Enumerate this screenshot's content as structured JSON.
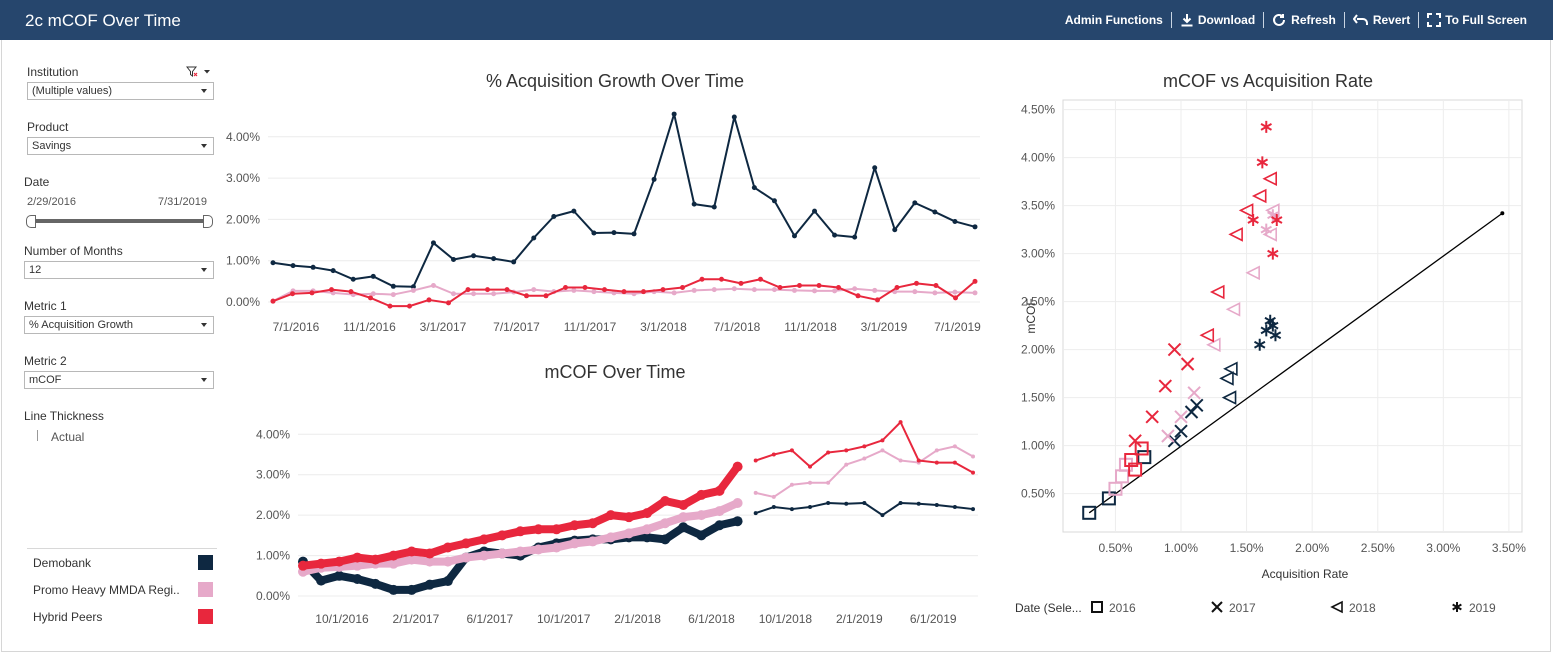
{
  "app": {
    "title": "2c mCOF Over Time",
    "toolbar": {
      "admin": "Admin Functions",
      "download": "Download",
      "refresh": "Refresh",
      "revert": "Revert",
      "fullscreen": "To Full Screen"
    }
  },
  "filters": {
    "institution": {
      "label": "Institution",
      "value": "(Multiple values)"
    },
    "product": {
      "label": "Product",
      "value": "Savings"
    },
    "date": {
      "label": "Date",
      "start": "2/29/2016",
      "end": "7/31/2019"
    },
    "months": {
      "label": "Number of Months",
      "value": "12"
    },
    "metric1": {
      "label": "Metric 1",
      "value": "% Acquisition Growth"
    },
    "metric2": {
      "label": "Metric 2",
      "value": "mCOF"
    },
    "thickness": {
      "label": "Line Thickness",
      "value": "Actual"
    }
  },
  "legend": [
    {
      "name": "Demobank",
      "color": "#0e2841"
    },
    {
      "name": "Promo Heavy MMDA Regi..",
      "color": "#e6a9c9"
    },
    {
      "name": "Hybrid Peers",
      "color": "#e8273d"
    }
  ],
  "shape_legend": {
    "title": "Date (Sele...",
    "items": [
      {
        "label": "2016",
        "shape": "square"
      },
      {
        "label": "2017",
        "shape": "x"
      },
      {
        "label": "2018",
        "shape": "triangle-left"
      },
      {
        "label": "2019",
        "shape": "asterisk"
      }
    ]
  },
  "chart_data": [
    {
      "type": "line",
      "title": "% Acquisition Growth Over Time",
      "x_ticks": [
        "7/1/2016",
        "11/1/2016",
        "3/1/2017",
        "7/1/2017",
        "11/1/2017",
        "3/1/2018",
        "7/1/2018",
        "11/1/2018",
        "3/1/2019",
        "7/1/2019"
      ],
      "y_ticks": [
        "0.00%",
        "1.00%",
        "2.00%",
        "3.00%",
        "4.00%"
      ],
      "ylim": [
        0,
        4.6
      ],
      "series": [
        {
          "name": "Demobank",
          "color": "#0e2841",
          "values": [
            0.95,
            0.88,
            0.84,
            0.76,
            0.55,
            0.62,
            0.38,
            0.37,
            1.43,
            1.03,
            1.12,
            1.05,
            0.97,
            1.55,
            2.07,
            2.2,
            1.67,
            1.68,
            1.65,
            2.97,
            4.55,
            2.37,
            2.3,
            4.48,
            2.77,
            2.45,
            1.6,
            2.2,
            1.62,
            1.57,
            3.25,
            1.75,
            2.4,
            2.18,
            1.95,
            1.82
          ]
        },
        {
          "name": "Promo Heavy MMDA Regi..",
          "color": "#e6a9c9",
          "values": [
            0.02,
            0.27,
            0.27,
            0.22,
            0.18,
            0.2,
            0.18,
            0.28,
            0.4,
            0.2,
            0.2,
            0.2,
            0.24,
            0.3,
            0.25,
            0.28,
            0.25,
            0.22,
            0.2,
            0.25,
            0.22,
            0.28,
            0.3,
            0.32,
            0.3,
            0.3,
            0.28,
            0.27,
            0.27,
            0.32,
            0.28,
            0.25,
            0.25,
            0.22,
            0.24,
            0.22
          ]
        },
        {
          "name": "Hybrid Peers",
          "color": "#e8273d",
          "values": [
            0.02,
            0.2,
            0.22,
            0.3,
            0.25,
            0.1,
            -0.1,
            -0.1,
            0.05,
            -0.02,
            0.3,
            0.3,
            0.3,
            0.15,
            0.15,
            0.35,
            0.35,
            0.3,
            0.25,
            0.25,
            0.3,
            0.35,
            0.55,
            0.55,
            0.45,
            0.55,
            0.35,
            0.4,
            0.4,
            0.35,
            0.15,
            0.05,
            0.35,
            0.45,
            0.4,
            0.1,
            0.5
          ]
        }
      ]
    },
    {
      "type": "line",
      "title": "mCOF Over Time",
      "x_ticks": [
        "10/1/2016",
        "2/1/2017",
        "6/1/2017",
        "10/1/2017",
        "2/1/2018",
        "6/1/2018",
        "10/1/2018",
        "2/1/2019",
        "6/1/2019"
      ],
      "y_ticks": [
        "0.00%",
        "1.00%",
        "2.00%",
        "3.00%",
        "4.00%"
      ],
      "ylim": [
        0,
        4.6
      ],
      "series": [
        {
          "name": "Demobank",
          "color": "#0e2841",
          "values": [
            0.85,
            0.38,
            0.5,
            0.42,
            0.3,
            0.15,
            0.15,
            0.28,
            0.37,
            0.95,
            1.1,
            1.05,
            1.0,
            1.2,
            1.3,
            1.37,
            1.4,
            1.4,
            1.45,
            1.45,
            1.4,
            1.7,
            1.5,
            1.75,
            1.85,
            2.05,
            2.2,
            2.15,
            2.2,
            2.3,
            2.28,
            2.3,
            2.0,
            2.3,
            2.28,
            2.25,
            2.2,
            2.15
          ]
        },
        {
          "name": "Promo Heavy MMDA Regi..",
          "color": "#e6a9c9",
          "values": [
            0.6,
            0.7,
            0.72,
            0.75,
            0.8,
            0.8,
            0.9,
            0.85,
            0.85,
            0.95,
            1.0,
            1.05,
            1.1,
            1.15,
            1.2,
            1.3,
            1.35,
            1.45,
            1.55,
            1.65,
            1.8,
            1.95,
            2.0,
            2.1,
            2.3,
            2.55,
            2.45,
            2.75,
            2.8,
            2.8,
            3.25,
            3.4,
            3.6,
            3.35,
            3.3,
            3.6,
            3.7,
            3.45
          ]
        },
        {
          "name": "Hybrid Peers",
          "color": "#e8273d",
          "values": [
            0.75,
            0.8,
            0.85,
            0.95,
            0.9,
            1.0,
            1.1,
            1.05,
            1.2,
            1.3,
            1.4,
            1.5,
            1.6,
            1.65,
            1.65,
            1.75,
            1.8,
            2.0,
            1.95,
            2.05,
            2.35,
            2.25,
            2.5,
            2.6,
            3.2,
            3.35,
            3.5,
            3.6,
            3.2,
            3.55,
            3.6,
            3.7,
            3.85,
            4.3,
            3.35,
            3.3,
            3.3,
            3.05
          ]
        }
      ]
    },
    {
      "type": "scatter",
      "title": "mCOF vs Acquisition Rate",
      "xlabel": "Acquisition Rate",
      "ylabel": "mCOF",
      "x_ticks": [
        "0.50%",
        "1.00%",
        "1.50%",
        "2.00%",
        "2.50%",
        "3.00%",
        "3.50%"
      ],
      "y_ticks": [
        "0.50%",
        "1.00%",
        "1.50%",
        "2.00%",
        "2.50%",
        "3.00%",
        "3.50%",
        "4.00%",
        "4.50%"
      ],
      "xlim": [
        0.1,
        3.6
      ],
      "ylim": [
        0.1,
        4.6
      ],
      "reference_line": [
        [
          0.3,
          0.3
        ],
        [
          3.45,
          3.42
        ]
      ],
      "points": [
        {
          "x": 0.3,
          "y": 0.3,
          "s": "square",
          "c": "#0e2841"
        },
        {
          "x": 0.45,
          "y": 0.45,
          "s": "square",
          "c": "#0e2841"
        },
        {
          "x": 0.72,
          "y": 0.88,
          "s": "square",
          "c": "#0e2841"
        },
        {
          "x": 0.5,
          "y": 0.55,
          "s": "square",
          "c": "#e6a9c9"
        },
        {
          "x": 0.58,
          "y": 0.8,
          "s": "square",
          "c": "#e6a9c9"
        },
        {
          "x": 0.55,
          "y": 0.68,
          "s": "square",
          "c": "#e6a9c9"
        },
        {
          "x": 0.65,
          "y": 0.75,
          "s": "square",
          "c": "#e8273d"
        },
        {
          "x": 0.7,
          "y": 0.97,
          "s": "square",
          "c": "#e8273d"
        },
        {
          "x": 0.62,
          "y": 0.85,
          "s": "square",
          "c": "#e8273d"
        },
        {
          "x": 0.95,
          "y": 1.05,
          "s": "x",
          "c": "#0e2841"
        },
        {
          "x": 1.0,
          "y": 1.15,
          "s": "x",
          "c": "#0e2841"
        },
        {
          "x": 1.08,
          "y": 1.35,
          "s": "x",
          "c": "#0e2841"
        },
        {
          "x": 1.12,
          "y": 1.42,
          "s": "x",
          "c": "#0e2841"
        },
        {
          "x": 0.9,
          "y": 1.1,
          "s": "x",
          "c": "#e6a9c9"
        },
        {
          "x": 1.0,
          "y": 1.3,
          "s": "x",
          "c": "#e6a9c9"
        },
        {
          "x": 1.1,
          "y": 1.55,
          "s": "x",
          "c": "#e6a9c9"
        },
        {
          "x": 0.65,
          "y": 1.05,
          "s": "x",
          "c": "#e8273d"
        },
        {
          "x": 0.78,
          "y": 1.3,
          "s": "x",
          "c": "#e8273d"
        },
        {
          "x": 0.88,
          "y": 1.62,
          "s": "x",
          "c": "#e8273d"
        },
        {
          "x": 0.95,
          "y": 2.0,
          "s": "x",
          "c": "#e8273d"
        },
        {
          "x": 1.05,
          "y": 1.85,
          "s": "x",
          "c": "#e8273d"
        },
        {
          "x": 1.37,
          "y": 1.5,
          "s": "triangle-left",
          "c": "#0e2841"
        },
        {
          "x": 1.35,
          "y": 1.7,
          "s": "triangle-left",
          "c": "#0e2841"
        },
        {
          "x": 1.38,
          "y": 1.8,
          "s": "triangle-left",
          "c": "#0e2841"
        },
        {
          "x": 1.25,
          "y": 2.05,
          "s": "triangle-left",
          "c": "#e6a9c9"
        },
        {
          "x": 1.4,
          "y": 2.42,
          "s": "triangle-left",
          "c": "#e6a9c9"
        },
        {
          "x": 1.55,
          "y": 2.8,
          "s": "triangle-left",
          "c": "#e6a9c9"
        },
        {
          "x": 1.68,
          "y": 3.2,
          "s": "triangle-left",
          "c": "#e6a9c9"
        },
        {
          "x": 1.7,
          "y": 3.45,
          "s": "triangle-left",
          "c": "#e6a9c9"
        },
        {
          "x": 1.2,
          "y": 2.15,
          "s": "triangle-left",
          "c": "#e8273d"
        },
        {
          "x": 1.28,
          "y": 2.6,
          "s": "triangle-left",
          "c": "#e8273d"
        },
        {
          "x": 1.42,
          "y": 3.2,
          "s": "triangle-left",
          "c": "#e8273d"
        },
        {
          "x": 1.5,
          "y": 3.45,
          "s": "triangle-left",
          "c": "#e8273d"
        },
        {
          "x": 1.6,
          "y": 3.6,
          "s": "triangle-left",
          "c": "#e8273d"
        },
        {
          "x": 1.68,
          "y": 3.78,
          "s": "triangle-left",
          "c": "#e8273d"
        },
        {
          "x": 1.6,
          "y": 2.05,
          "s": "asterisk",
          "c": "#0e2841"
        },
        {
          "x": 1.65,
          "y": 2.2,
          "s": "asterisk",
          "c": "#0e2841"
        },
        {
          "x": 1.7,
          "y": 2.25,
          "s": "asterisk",
          "c": "#0e2841"
        },
        {
          "x": 1.72,
          "y": 2.15,
          "s": "asterisk",
          "c": "#0e2841"
        },
        {
          "x": 1.68,
          "y": 2.3,
          "s": "asterisk",
          "c": "#0e2841"
        },
        {
          "x": 1.65,
          "y": 3.25,
          "s": "asterisk",
          "c": "#e6a9c9"
        },
        {
          "x": 1.7,
          "y": 3.4,
          "s": "asterisk",
          "c": "#e6a9c9"
        },
        {
          "x": 1.62,
          "y": 3.95,
          "s": "asterisk",
          "c": "#e8273d"
        },
        {
          "x": 1.65,
          "y": 4.32,
          "s": "asterisk",
          "c": "#e8273d"
        },
        {
          "x": 1.7,
          "y": 3.0,
          "s": "asterisk",
          "c": "#e8273d"
        },
        {
          "x": 1.73,
          "y": 3.35,
          "s": "asterisk",
          "c": "#e8273d"
        },
        {
          "x": 1.55,
          "y": 3.35,
          "s": "asterisk",
          "c": "#e8273d"
        }
      ]
    }
  ]
}
